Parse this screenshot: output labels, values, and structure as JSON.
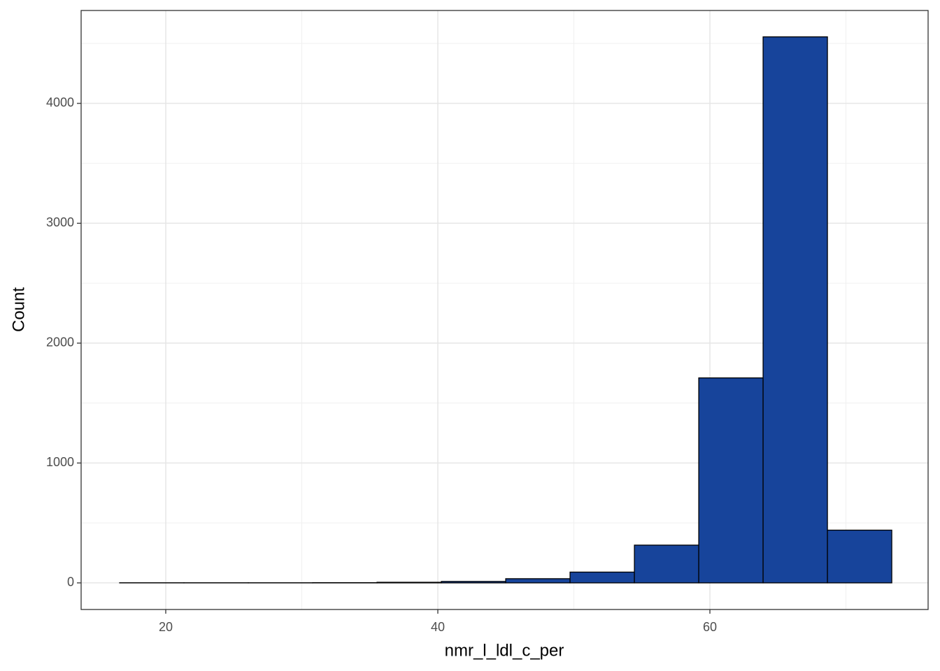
{
  "chart_data": {
    "type": "histogram",
    "x_label": "nmr_l_ldl_c_per",
    "y_label": "Count",
    "bins": [
      16.61,
      21.34,
      26.07,
      30.8,
      35.53,
      40.26,
      44.99,
      49.72,
      54.45,
      59.18,
      63.91,
      68.64,
      73.37
    ],
    "values": [
      1,
      1,
      1,
      2,
      5,
      12,
      35,
      90,
      315,
      1710,
      4555,
      440
    ],
    "color": "#17449b",
    "xlim": [
      13.78,
      76.04
    ],
    "ylim": [
      -222,
      4775
    ],
    "xticks": [
      20,
      40,
      60
    ],
    "yticks": [
      0,
      1000,
      2000,
      3000,
      4000
    ],
    "x_minor_grid": [
      30,
      50,
      70
    ],
    "y_minor_grid": [
      500,
      1500,
      2500,
      3500,
      4500
    ],
    "grid": true
  }
}
